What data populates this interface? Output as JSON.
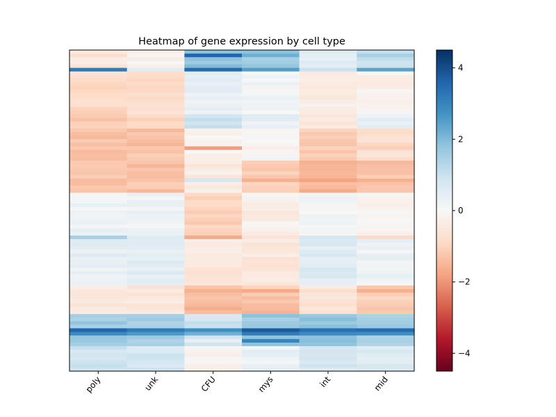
{
  "chart_data": {
    "type": "heatmap",
    "title": "Heatmap of gene expression by cell type",
    "xlabel": "",
    "ylabel": "",
    "columns": [
      "poly",
      "unk",
      "CFU",
      "mys",
      "int",
      "mid"
    ],
    "colormap": "RdBu",
    "vlim": [
      -4.5,
      4.5
    ],
    "colorbar": {
      "ticks": [
        4,
        2,
        0,
        -2,
        -4
      ],
      "tick_labels": [
        "4",
        "2",
        "0",
        "−2",
        "−4"
      ]
    },
    "y_ticks_shown": false,
    "row_count": 90,
    "blocks": [
      {
        "rows": 6,
        "values": [
          -0.5,
          -0.2,
          1.8,
          1.6,
          0.5,
          1.0
        ]
      },
      {
        "rows": 12,
        "values": [
          -0.9,
          -0.8,
          0.4,
          0.1,
          -0.4,
          -0.2
        ]
      },
      {
        "rows": 4,
        "values": [
          -1.1,
          -1.0,
          1.0,
          0.4,
          -0.5,
          0.3
        ]
      },
      {
        "rows": 9,
        "values": [
          -1.3,
          -1.3,
          -0.2,
          0.0,
          -1.1,
          -0.8
        ]
      },
      {
        "rows": 9,
        "values": [
          -1.3,
          -1.3,
          -0.4,
          -1.2,
          -1.5,
          -1.3
        ]
      },
      {
        "rows": 13,
        "values": [
          0.2,
          0.2,
          -1.0,
          -0.3,
          0.1,
          -0.1
        ]
      },
      {
        "rows": 13,
        "values": [
          0.4,
          0.5,
          -0.5,
          -0.5,
          0.6,
          0.3
        ]
      },
      {
        "rows": 5,
        "values": [
          -0.5,
          -0.5,
          -1.3,
          -1.2,
          -0.5,
          -1.1
        ]
      },
      {
        "rows": 3,
        "values": [
          -0.6,
          -0.6,
          -1.6,
          -1.4,
          -0.7,
          -1.3
        ]
      },
      {
        "rows": 9,
        "values": [
          1.6,
          1.5,
          0.9,
          1.7,
          1.8,
          1.6
        ]
      },
      {
        "rows": 7,
        "values": [
          0.9,
          0.8,
          -0.1,
          0.3,
          0.8,
          0.6
        ]
      }
    ],
    "accent_rows": [
      {
        "row": 1,
        "values": [
          -0.8,
          -0.1,
          3.6,
          2.2,
          0.4,
          1.5
        ]
      },
      {
        "row": 5,
        "values": [
          3.2,
          0.5,
          3.5,
          2.5,
          1.0,
          2.4
        ]
      },
      {
        "row": 27,
        "values": [
          -1.2,
          -1.2,
          -1.9,
          -0.3,
          -1.0,
          -1.1
        ]
      },
      {
        "row": 36,
        "values": [
          -1.4,
          -1.3,
          0.8,
          -1.6,
          -1.8,
          -1.6
        ]
      },
      {
        "row": 52,
        "values": [
          1.5,
          0.6,
          -1.7,
          -0.6,
          0.8,
          -0.9
        ]
      },
      {
        "row": 67,
        "values": [
          -0.5,
          -0.4,
          -1.6,
          -1.7,
          -0.8,
          -1.6
        ]
      },
      {
        "row": 78,
        "values": [
          3.6,
          3.2,
          2.8,
          3.8,
          3.4,
          3.5
        ]
      },
      {
        "row": 79,
        "values": [
          2.9,
          2.6,
          2.2,
          3.2,
          2.9,
          2.8
        ]
      },
      {
        "row": 81,
        "values": [
          1.7,
          1.4,
          0.4,
          3.0,
          1.9,
          1.5
        ]
      }
    ]
  }
}
